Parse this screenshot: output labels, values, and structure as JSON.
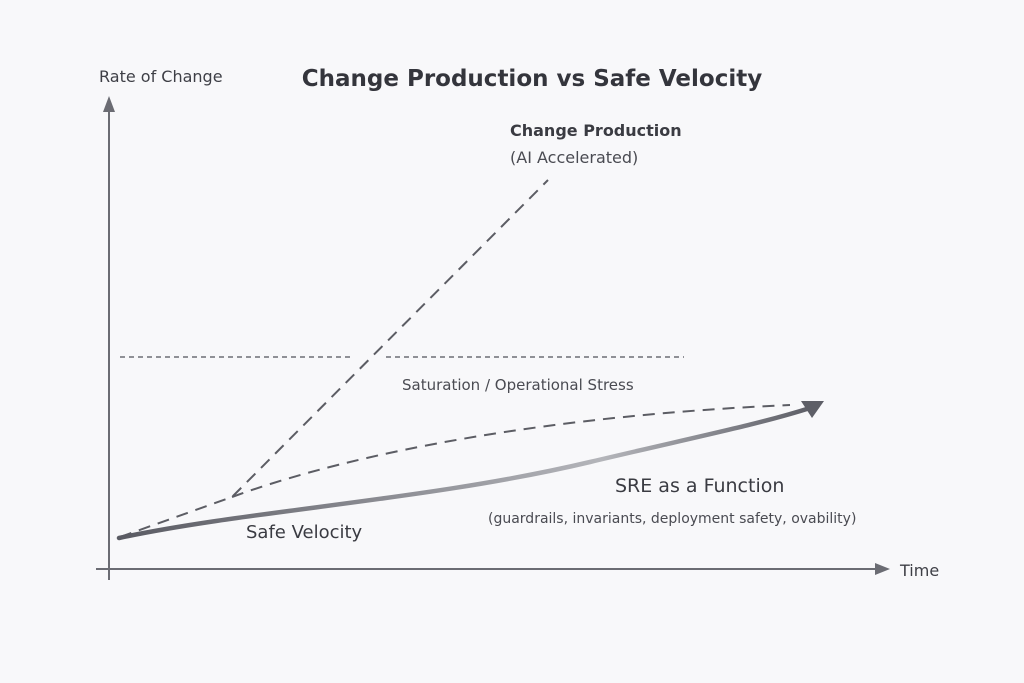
{
  "title": "Change Production vs Safe Velocity",
  "axes": {
    "y_label": "Rate of Change",
    "x_label": "Time",
    "color": "#6b6c73"
  },
  "curves": {
    "change_production": {
      "label": "Change Production",
      "sublabel": "(AI Accelerated)",
      "style": "dashed",
      "color": "#5c5d64"
    },
    "saturation": {
      "label": "Saturation / Operational Stress",
      "style": "dashed",
      "color": "#6c6d74"
    },
    "stress_curve": {
      "style": "dashed",
      "color": "#5c5d64"
    },
    "safe_velocity": {
      "label": "Safe Velocity",
      "style": "solid-gradient-arrow",
      "colors": [
        "#5a5b63",
        "#b4b5ba",
        "#5e5f67"
      ]
    }
  },
  "annotations": {
    "sre_title": "SRE as a Function",
    "sre_subtitle": "(guardrails, invariants, deployment safety, ovability)"
  }
}
